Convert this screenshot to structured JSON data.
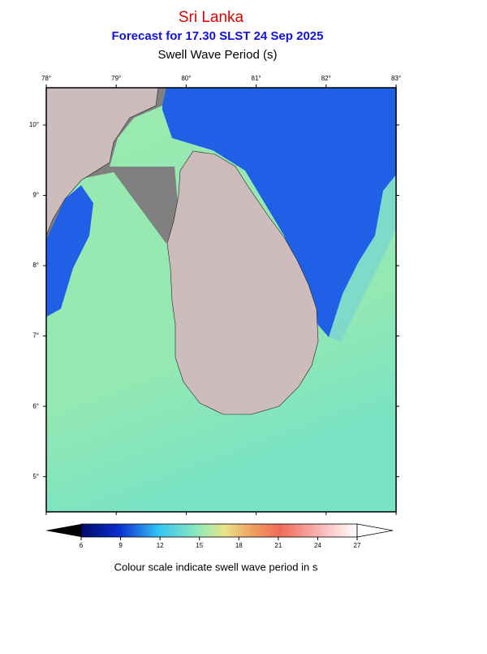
{
  "header": {
    "title": "Sri Lanka",
    "subtitle": "Forecast for  17.30 SLST 24 Sep 2025",
    "variable": "Swell Wave Period (s)"
  },
  "map": {
    "lon_range": [
      78,
      83
    ],
    "lat_range": [
      10.53,
      4.5
    ],
    "lon_ticks": [
      {
        "value": 78,
        "label": "78°"
      },
      {
        "value": 79,
        "label": "79°"
      },
      {
        "value": 80,
        "label": "80°"
      },
      {
        "value": 81,
        "label": "81°"
      },
      {
        "value": 82,
        "label": "82°"
      },
      {
        "value": 83,
        "label": "83°"
      }
    ],
    "lat_ticks": [
      {
        "value": 10,
        "label": "10°"
      },
      {
        "value": 9,
        "label": "9°"
      },
      {
        "value": 8,
        "label": "8°"
      },
      {
        "value": 7,
        "label": "7°"
      },
      {
        "value": 6,
        "label": "6°"
      },
      {
        "value": 5,
        "label": "5°"
      }
    ]
  },
  "colorbar": {
    "range": [
      6,
      27
    ],
    "ticks": [
      6,
      9,
      12,
      15,
      18,
      21,
      24,
      27
    ],
    "caption": "Colour scale indicate swell wave period in s"
  }
}
